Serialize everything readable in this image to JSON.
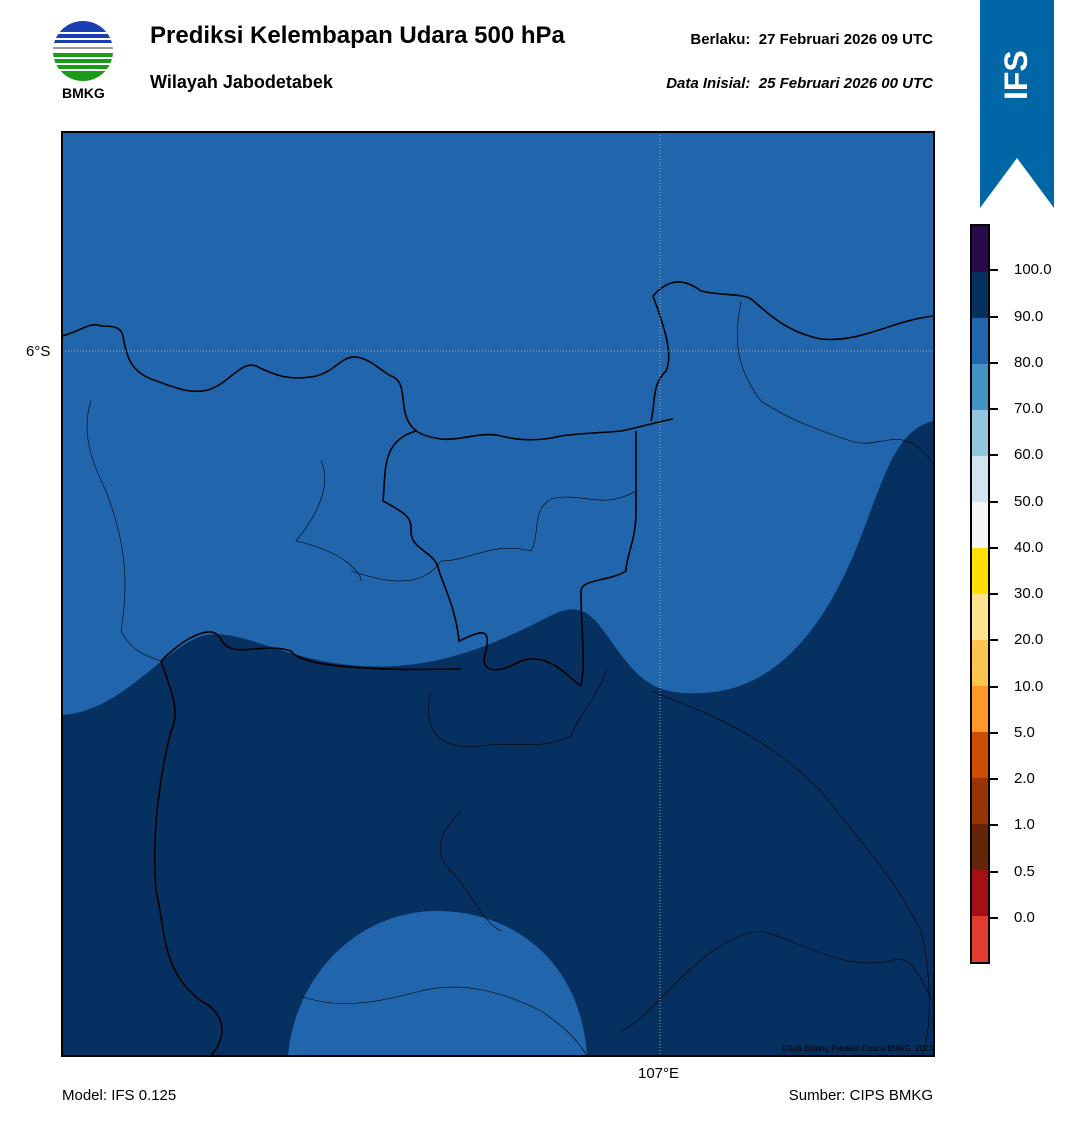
{
  "header": {
    "logo_text": "BMKG",
    "title": "Prediksi Kelembapan Udara 500 hPa",
    "subtitle": "Wilayah Jabodetabek",
    "valid_label": "Berlaku:",
    "valid_time": "27 Februari 2026 09 UTC",
    "init_label": "Data Inisial:",
    "init_time": "25 Februari 2026 00 UTC"
  },
  "badge": {
    "text": "IFS",
    "color": "#0066a6"
  },
  "map": {
    "lat_label": "6°S",
    "lon_label": "107°E",
    "credit": "©Sub Bidang Prediksi Cuaca BMKG, 2023",
    "fill_colors": {
      "humidity_80_90": "#2166ac",
      "humidity_90_100": "#06305f"
    }
  },
  "colorbar": {
    "labels": [
      "100.0",
      "90.0",
      "80.0",
      "70.0",
      "60.0",
      "50.0",
      "40.0",
      "30.0",
      "20.0",
      "10.0",
      "5.0",
      "2.0",
      "1.0",
      "0.5",
      "0.0"
    ],
    "colors": [
      "#2a0a4a",
      "#06305f",
      "#2166ac",
      "#4393c3",
      "#92c5de",
      "#d1e5f0",
      "#f7f7f7",
      "#ffe000",
      "#fee391",
      "#fec44f",
      "#fe9929",
      "#cc4c02",
      "#993404",
      "#662506",
      "#a50f15",
      "#e33c2f"
    ]
  },
  "footer": {
    "model": "Model: IFS 0.125",
    "source": "Sumber: CIPS BMKG"
  }
}
